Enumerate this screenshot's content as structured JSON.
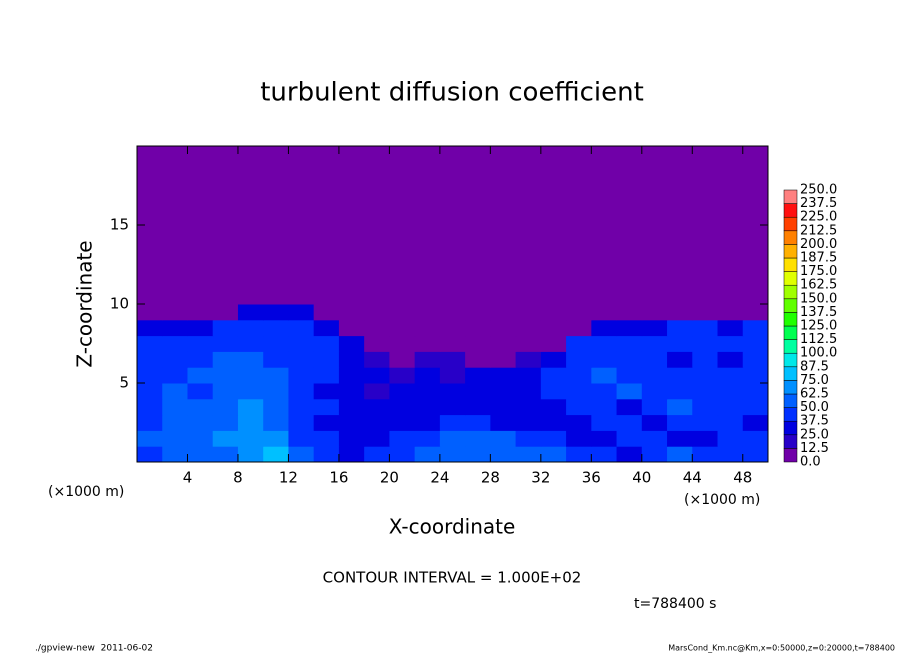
{
  "chart_data": {
    "type": "heatmap",
    "title": "turbulent diffusion coefficient",
    "xlabel": "X-coordinate",
    "ylabel": "Z-coordinate",
    "x_unit": "(×1000 m)",
    "y_unit": "(×1000 m)",
    "xlim": [
      0,
      50
    ],
    "ylim": [
      0,
      20
    ],
    "xticks": [
      4,
      8,
      12,
      16,
      20,
      24,
      28,
      32,
      36,
      40,
      44,
      48
    ],
    "yticks": [
      5,
      10,
      15
    ],
    "x_bins": [
      0,
      2,
      4,
      6,
      8,
      10,
      12,
      14,
      16,
      18,
      20,
      22,
      24,
      26,
      28,
      30,
      32,
      34,
      36,
      38,
      40,
      42,
      44,
      46,
      48,
      50
    ],
    "y_bins": [
      0,
      1,
      2,
      3,
      4,
      5,
      6,
      7,
      8,
      9,
      10,
      20
    ],
    "values": [
      [
        45,
        50,
        55,
        60,
        70,
        75,
        50,
        40,
        35,
        40,
        45,
        50,
        55,
        55,
        60,
        55,
        50,
        45,
        40,
        35,
        45,
        50,
        40,
        40,
        45
      ],
      [
        50,
        55,
        60,
        65,
        70,
        70,
        45,
        40,
        30,
        35,
        40,
        45,
        50,
        55,
        50,
        45,
        40,
        35,
        30,
        40,
        45,
        35,
        35,
        40,
        40
      ],
      [
        45,
        60,
        55,
        60,
        65,
        60,
        40,
        35,
        30,
        25,
        30,
        35,
        40,
        40,
        35,
        30,
        30,
        35,
        40,
        45,
        30,
        40,
        45,
        40,
        35
      ],
      [
        40,
        55,
        50,
        55,
        65,
        55,
        40,
        40,
        25,
        30,
        25,
        30,
        30,
        35,
        30,
        25,
        35,
        45,
        40,
        35,
        40,
        50,
        40,
        45,
        40
      ],
      [
        45,
        50,
        45,
        55,
        60,
        50,
        45,
        35,
        30,
        20,
        30,
        25,
        30,
        30,
        25,
        30,
        40,
        40,
        45,
        50,
        45,
        40,
        45,
        40,
        40
      ],
      [
        40,
        45,
        50,
        50,
        55,
        50,
        40,
        40,
        30,
        25,
        20,
        25,
        20,
        25,
        30,
        35,
        40,
        45,
        50,
        45,
        40,
        45,
        40,
        45,
        40
      ],
      [
        40,
        45,
        45,
        50,
        50,
        45,
        40,
        40,
        35,
        20,
        10,
        15,
        20,
        10,
        10,
        20,
        35,
        45,
        45,
        40,
        40,
        35,
        40,
        35,
        40
      ],
      [
        40,
        40,
        45,
        45,
        45,
        45,
        40,
        40,
        30,
        0,
        0,
        0,
        0,
        0,
        0,
        0,
        0,
        40,
        40,
        40,
        40,
        40,
        40,
        40,
        40
      ],
      [
        35,
        35,
        35,
        40,
        40,
        40,
        40,
        35,
        0,
        0,
        0,
        0,
        0,
        0,
        0,
        0,
        0,
        0,
        35,
        35,
        35,
        40,
        40,
        35,
        40
      ],
      [
        0,
        0,
        0,
        0,
        35,
        35,
        30,
        0,
        0,
        0,
        0,
        0,
        0,
        0,
        0,
        0,
        0,
        0,
        0,
        0,
        0,
        0,
        0,
        0,
        0
      ],
      [
        0,
        0,
        0,
        0,
        0,
        0,
        0,
        0,
        0,
        0,
        0,
        0,
        0,
        0,
        0,
        0,
        0,
        0,
        0,
        0,
        0,
        0,
        0,
        0,
        0
      ]
    ],
    "colorbar": {
      "ticks": [
        {
          "value": 0,
          "label": "0.0"
        },
        12.5,
        {
          "value": 25,
          "label": "25.0"
        },
        37.5,
        {
          "value": 50,
          "label": "50.0"
        },
        62.5,
        {
          "value": 75,
          "label": "75.0"
        },
        87.5,
        {
          "value": 100,
          "label": "100.0"
        },
        112.5,
        {
          "value": 125,
          "label": "125.0"
        },
        137.5,
        {
          "value": 150,
          "label": "150.0"
        },
        162.5,
        {
          "value": 175,
          "label": "175.0"
        },
        187.5,
        {
          "value": 200,
          "label": "200.0"
        },
        212.5,
        {
          "value": 225,
          "label": "225.0"
        },
        237.5,
        {
          "value": 250,
          "label": "250.0"
        }
      ],
      "colors": [
        "#7000a8",
        "#2800c8",
        "#0000e0",
        "#0030ff",
        "#0060ff",
        "#0090ff",
        "#00c0ff",
        "#00e8e8",
        "#00ffa0",
        "#00ff50",
        "#20ff00",
        "#60ff00",
        "#a0ff00",
        "#e0ff00",
        "#ffe000",
        "#ffb000",
        "#ff8000",
        "#ff4000",
        "#ff1010",
        "#ff8080"
      ]
    },
    "contour_note": "CONTOUR INTERVAL = 1.000E+02",
    "time_label": "t=788400 s",
    "footer_left": "./gpview-new  2011-06-02",
    "footer_right": "MarsCond_Km.nc@Km,x=0:50000,z=0:20000,t=788400"
  }
}
